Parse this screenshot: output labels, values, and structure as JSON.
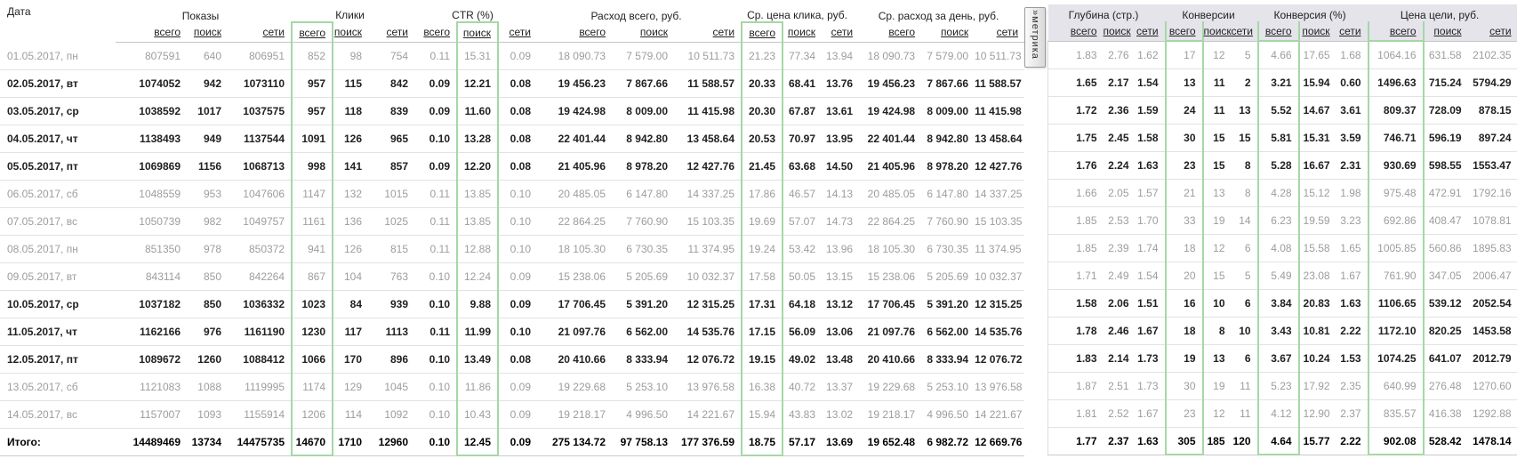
{
  "report": {
    "date_header": "Дата",
    "sub_headers": [
      "всего",
      "поиск",
      "сети"
    ],
    "metrika_tab": {
      "chevron": "»",
      "label": "метрика"
    },
    "sections": {
      "left": {
        "groups": [
          "Показы",
          "Клики",
          "CTR (%)",
          "Расход всего, руб.",
          "Ср. цена клика, руб.",
          "Ср. расход за день, руб."
        ],
        "highlighted_columns": [
          3,
          7,
          12
        ]
      },
      "right": {
        "groups": [
          "Глубина (стр.)",
          "Конверсии",
          "Конверсия (%)",
          "Цена цели, руб."
        ],
        "highlighted_columns": [
          3,
          6,
          9
        ]
      }
    },
    "rows": [
      {
        "date": "01.05.2017, пн",
        "muted": true,
        "left": [
          "807591",
          "640",
          "806951",
          "852",
          "98",
          "754",
          "0.11",
          "15.31",
          "0.09",
          "18 090.73",
          "7 579.00",
          "10 511.73",
          "21.23",
          "77.34",
          "13.94",
          "18 090.73",
          "7 579.00",
          "10 511.73"
        ],
        "right": [
          "1.83",
          "2.76",
          "1.62",
          "17",
          "12",
          "5",
          "4.66",
          "17.65",
          "1.68",
          "1064.16",
          "631.58",
          "2102.35"
        ]
      },
      {
        "date": "02.05.2017, вт",
        "muted": false,
        "left": [
          "1074052",
          "942",
          "1073110",
          "957",
          "115",
          "842",
          "0.09",
          "12.21",
          "0.08",
          "19 456.23",
          "7 867.66",
          "11 588.57",
          "20.33",
          "68.41",
          "13.76",
          "19 456.23",
          "7 867.66",
          "11 588.57"
        ],
        "right": [
          "1.65",
          "2.17",
          "1.54",
          "13",
          "11",
          "2",
          "3.21",
          "15.94",
          "0.60",
          "1496.63",
          "715.24",
          "5794.29"
        ]
      },
      {
        "date": "03.05.2017, ср",
        "muted": false,
        "left": [
          "1038592",
          "1017",
          "1037575",
          "957",
          "118",
          "839",
          "0.09",
          "11.60",
          "0.08",
          "19 424.98",
          "8 009.00",
          "11 415.98",
          "20.30",
          "67.87",
          "13.61",
          "19 424.98",
          "8 009.00",
          "11 415.98"
        ],
        "right": [
          "1.72",
          "2.36",
          "1.59",
          "24",
          "11",
          "13",
          "5.52",
          "14.67",
          "3.61",
          "809.37",
          "728.09",
          "878.15"
        ]
      },
      {
        "date": "04.05.2017, чт",
        "muted": false,
        "left": [
          "1138493",
          "949",
          "1137544",
          "1091",
          "126",
          "965",
          "0.10",
          "13.28",
          "0.08",
          "22 401.44",
          "8 942.80",
          "13 458.64",
          "20.53",
          "70.97",
          "13.95",
          "22 401.44",
          "8 942.80",
          "13 458.64"
        ],
        "right": [
          "1.75",
          "2.45",
          "1.58",
          "30",
          "15",
          "15",
          "5.81",
          "15.31",
          "3.59",
          "746.71",
          "596.19",
          "897.24"
        ]
      },
      {
        "date": "05.05.2017, пт",
        "muted": false,
        "left": [
          "1069869",
          "1156",
          "1068713",
          "998",
          "141",
          "857",
          "0.09",
          "12.20",
          "0.08",
          "21 405.96",
          "8 978.20",
          "12 427.76",
          "21.45",
          "63.68",
          "14.50",
          "21 405.96",
          "8 978.20",
          "12 427.76"
        ],
        "right": [
          "1.76",
          "2.24",
          "1.63",
          "23",
          "15",
          "8",
          "5.28",
          "16.67",
          "2.31",
          "930.69",
          "598.55",
          "1553.47"
        ]
      },
      {
        "date": "06.05.2017, сб",
        "muted": true,
        "left": [
          "1048559",
          "953",
          "1047606",
          "1147",
          "132",
          "1015",
          "0.11",
          "13.85",
          "0.10",
          "20 485.05",
          "6 147.80",
          "14 337.25",
          "17.86",
          "46.57",
          "14.13",
          "20 485.05",
          "6 147.80",
          "14 337.25"
        ],
        "right": [
          "1.66",
          "2.05",
          "1.57",
          "21",
          "13",
          "8",
          "4.28",
          "15.12",
          "1.98",
          "975.48",
          "472.91",
          "1792.16"
        ]
      },
      {
        "date": "07.05.2017, вс",
        "muted": true,
        "left": [
          "1050739",
          "982",
          "1049757",
          "1161",
          "136",
          "1025",
          "0.11",
          "13.85",
          "0.10",
          "22 864.25",
          "7 760.90",
          "15 103.35",
          "19.69",
          "57.07",
          "14.73",
          "22 864.25",
          "7 760.90",
          "15 103.35"
        ],
        "right": [
          "1.85",
          "2.53",
          "1.70",
          "33",
          "19",
          "14",
          "6.23",
          "19.59",
          "3.23",
          "692.86",
          "408.47",
          "1078.81"
        ]
      },
      {
        "date": "08.05.2017, пн",
        "muted": true,
        "left": [
          "851350",
          "978",
          "850372",
          "941",
          "126",
          "815",
          "0.11",
          "12.88",
          "0.10",
          "18 105.30",
          "6 730.35",
          "11 374.95",
          "19.24",
          "53.42",
          "13.96",
          "18 105.30",
          "6 730.35",
          "11 374.95"
        ],
        "right": [
          "1.85",
          "2.39",
          "1.74",
          "18",
          "12",
          "6",
          "4.08",
          "15.58",
          "1.65",
          "1005.85",
          "560.86",
          "1895.83"
        ]
      },
      {
        "date": "09.05.2017, вт",
        "muted": true,
        "left": [
          "843114",
          "850",
          "842264",
          "867",
          "104",
          "763",
          "0.10",
          "12.24",
          "0.09",
          "15 238.06",
          "5 205.69",
          "10 032.37",
          "17.58",
          "50.05",
          "13.15",
          "15 238.06",
          "5 205.69",
          "10 032.37"
        ],
        "right": [
          "1.71",
          "2.49",
          "1.54",
          "20",
          "15",
          "5",
          "5.49",
          "23.08",
          "1.67",
          "761.90",
          "347.05",
          "2006.47"
        ]
      },
      {
        "date": "10.05.2017, ср",
        "muted": false,
        "left": [
          "1037182",
          "850",
          "1036332",
          "1023",
          "84",
          "939",
          "0.10",
          "9.88",
          "0.09",
          "17 706.45",
          "5 391.20",
          "12 315.25",
          "17.31",
          "64.18",
          "13.12",
          "17 706.45",
          "5 391.20",
          "12 315.25"
        ],
        "right": [
          "1.58",
          "2.06",
          "1.51",
          "16",
          "10",
          "6",
          "3.84",
          "20.83",
          "1.63",
          "1106.65",
          "539.12",
          "2052.54"
        ]
      },
      {
        "date": "11.05.2017, чт",
        "muted": false,
        "left": [
          "1162166",
          "976",
          "1161190",
          "1230",
          "117",
          "1113",
          "0.11",
          "11.99",
          "0.10",
          "21 097.76",
          "6 562.00",
          "14 535.76",
          "17.15",
          "56.09",
          "13.06",
          "21 097.76",
          "6 562.00",
          "14 535.76"
        ],
        "right": [
          "1.78",
          "2.46",
          "1.67",
          "18",
          "8",
          "10",
          "3.43",
          "10.81",
          "2.22",
          "1172.10",
          "820.25",
          "1453.58"
        ]
      },
      {
        "date": "12.05.2017, пт",
        "muted": false,
        "left": [
          "1089672",
          "1260",
          "1088412",
          "1066",
          "170",
          "896",
          "0.10",
          "13.49",
          "0.08",
          "20 410.66",
          "8 333.94",
          "12 076.72",
          "19.15",
          "49.02",
          "13.48",
          "20 410.66",
          "8 333.94",
          "12 076.72"
        ],
        "right": [
          "1.83",
          "2.14",
          "1.73",
          "19",
          "13",
          "6",
          "3.67",
          "10.24",
          "1.53",
          "1074.25",
          "641.07",
          "2012.79"
        ]
      },
      {
        "date": "13.05.2017, сб",
        "muted": true,
        "left": [
          "1121083",
          "1088",
          "1119995",
          "1174",
          "129",
          "1045",
          "0.10",
          "11.86",
          "0.09",
          "19 229.68",
          "5 253.10",
          "13 976.58",
          "16.38",
          "40.72",
          "13.37",
          "19 229.68",
          "5 253.10",
          "13 976.58"
        ],
        "right": [
          "1.87",
          "2.51",
          "1.73",
          "30",
          "19",
          "11",
          "5.23",
          "17.92",
          "2.35",
          "640.99",
          "276.48",
          "1270.60"
        ]
      },
      {
        "date": "14.05.2017, вс",
        "muted": true,
        "left": [
          "1157007",
          "1093",
          "1155914",
          "1206",
          "114",
          "1092",
          "0.10",
          "10.43",
          "0.09",
          "19 218.17",
          "4 996.50",
          "14 221.67",
          "15.94",
          "43.83",
          "13.02",
          "19 218.17",
          "4 996.50",
          "14 221.67"
        ],
        "right": [
          "1.81",
          "2.52",
          "1.67",
          "23",
          "12",
          "11",
          "4.12",
          "12.90",
          "2.37",
          "835.57",
          "416.38",
          "1292.88"
        ]
      }
    ],
    "totals": {
      "label": "Итого:",
      "left": [
        "14489469",
        "13734",
        "14475735",
        "14670",
        "1710",
        "12960",
        "0.10",
        "12.45",
        "0.09",
        "275 134.72",
        "97 758.13",
        "177 376.59",
        "18.75",
        "57.17",
        "13.69",
        "19 652.48",
        "6 982.72",
        "12 669.76"
      ],
      "right": [
        "1.77",
        "2.37",
        "1.63",
        "305",
        "185",
        "120",
        "4.64",
        "15.77",
        "2.22",
        "902.08",
        "528.42",
        "1478.14"
      ]
    }
  },
  "colors": {
    "highlight_border": "#a6d7a6",
    "right_header_band": "#e4e4ea"
  }
}
